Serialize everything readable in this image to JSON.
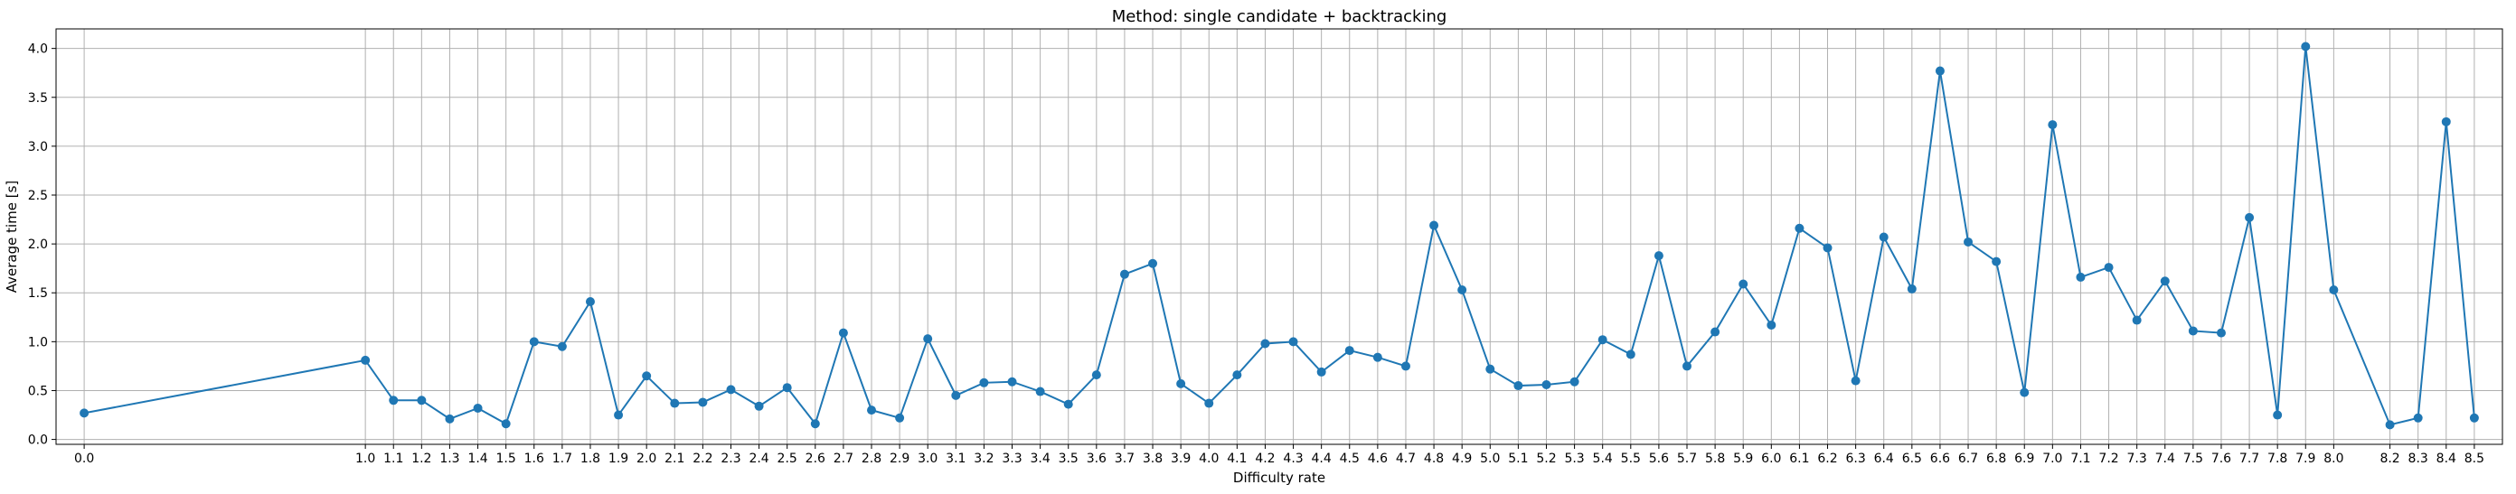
{
  "chart_data": {
    "type": "line",
    "title": "Method: single candidate + backtracking",
    "xlabel": "Difficulty rate",
    "ylabel": "Average time [s]",
    "grid": true,
    "xlim": [
      -0.1,
      8.6
    ],
    "ylim": [
      -0.05,
      4.2
    ],
    "yticks": [
      0.0,
      0.5,
      1.0,
      1.5,
      2.0,
      2.5,
      3.0,
      3.5,
      4.0
    ],
    "ytick_labels": [
      "0.0",
      "0.5",
      "1.0",
      "1.5",
      "2.0",
      "2.5",
      "3.0",
      "3.5",
      "4.0"
    ],
    "marker": "circle",
    "line_color": "#1f77b4",
    "x": [
      0.0,
      1.0,
      1.1,
      1.2,
      1.3,
      1.4,
      1.5,
      1.6,
      1.7,
      1.8,
      1.9,
      2.0,
      2.1,
      2.2,
      2.3,
      2.4,
      2.5,
      2.6,
      2.7,
      2.8,
      2.9,
      3.0,
      3.1,
      3.2,
      3.3,
      3.4,
      3.5,
      3.6,
      3.7,
      3.8,
      3.9,
      4.0,
      4.1,
      4.2,
      4.3,
      4.4,
      4.5,
      4.6,
      4.7,
      4.8,
      4.9,
      5.0,
      5.1,
      5.2,
      5.3,
      5.4,
      5.5,
      5.6,
      5.7,
      5.8,
      5.9,
      6.0,
      6.1,
      6.2,
      6.3,
      6.4,
      6.5,
      6.6,
      6.7,
      6.8,
      6.9,
      7.0,
      7.1,
      7.2,
      7.3,
      7.4,
      7.5,
      7.6,
      7.7,
      7.8,
      7.9,
      8.0,
      8.2,
      8.3,
      8.4,
      8.5
    ],
    "xtick_labels": [
      "0.0",
      "1.0",
      "1.1",
      "1.2",
      "1.3",
      "1.4",
      "1.5",
      "1.6",
      "1.7",
      "1.8",
      "1.9",
      "2.0",
      "2.1",
      "2.2",
      "2.3",
      "2.4",
      "2.5",
      "2.6",
      "2.7",
      "2.8",
      "2.9",
      "3.0",
      "3.1",
      "3.2",
      "3.3",
      "3.4",
      "3.5",
      "3.6",
      "3.7",
      "3.8",
      "3.9",
      "4.0",
      "4.1",
      "4.2",
      "4.3",
      "4.4",
      "4.5",
      "4.6",
      "4.7",
      "4.8",
      "4.9",
      "5.0",
      "5.1",
      "5.2",
      "5.3",
      "5.4",
      "5.5",
      "5.6",
      "5.7",
      "5.8",
      "5.9",
      "6.0",
      "6.1",
      "6.2",
      "6.3",
      "6.4",
      "6.5",
      "6.6",
      "6.7",
      "6.8",
      "6.9",
      "7.0",
      "7.1",
      "7.2",
      "7.3",
      "7.4",
      "7.5",
      "7.6",
      "7.7",
      "7.8",
      "7.9",
      "8.0",
      "8.2",
      "8.3",
      "8.4",
      "8.5"
    ],
    "y": [
      0.27,
      0.81,
      0.4,
      0.4,
      0.21,
      0.32,
      0.16,
      1.0,
      0.95,
      1.41,
      0.25,
      0.65,
      0.37,
      0.38,
      0.51,
      0.34,
      0.53,
      0.16,
      1.09,
      0.3,
      0.22,
      1.03,
      0.45,
      0.58,
      0.59,
      0.49,
      0.36,
      0.66,
      1.69,
      1.8,
      0.57,
      0.37,
      0.66,
      0.98,
      1.0,
      0.69,
      0.91,
      0.84,
      0.75,
      2.19,
      1.53,
      0.72,
      0.55,
      0.56,
      0.59,
      1.02,
      0.87,
      1.88,
      0.75,
      1.1,
      1.59,
      1.17,
      2.16,
      1.96,
      0.6,
      2.07,
      1.54,
      3.77,
      2.02,
      1.82,
      0.48,
      3.22,
      1.66,
      1.76,
      1.22,
      1.62,
      1.11,
      1.09,
      2.27,
      0.25,
      4.02,
      1.53,
      0.15,
      0.22,
      3.25,
      0.22
    ]
  }
}
